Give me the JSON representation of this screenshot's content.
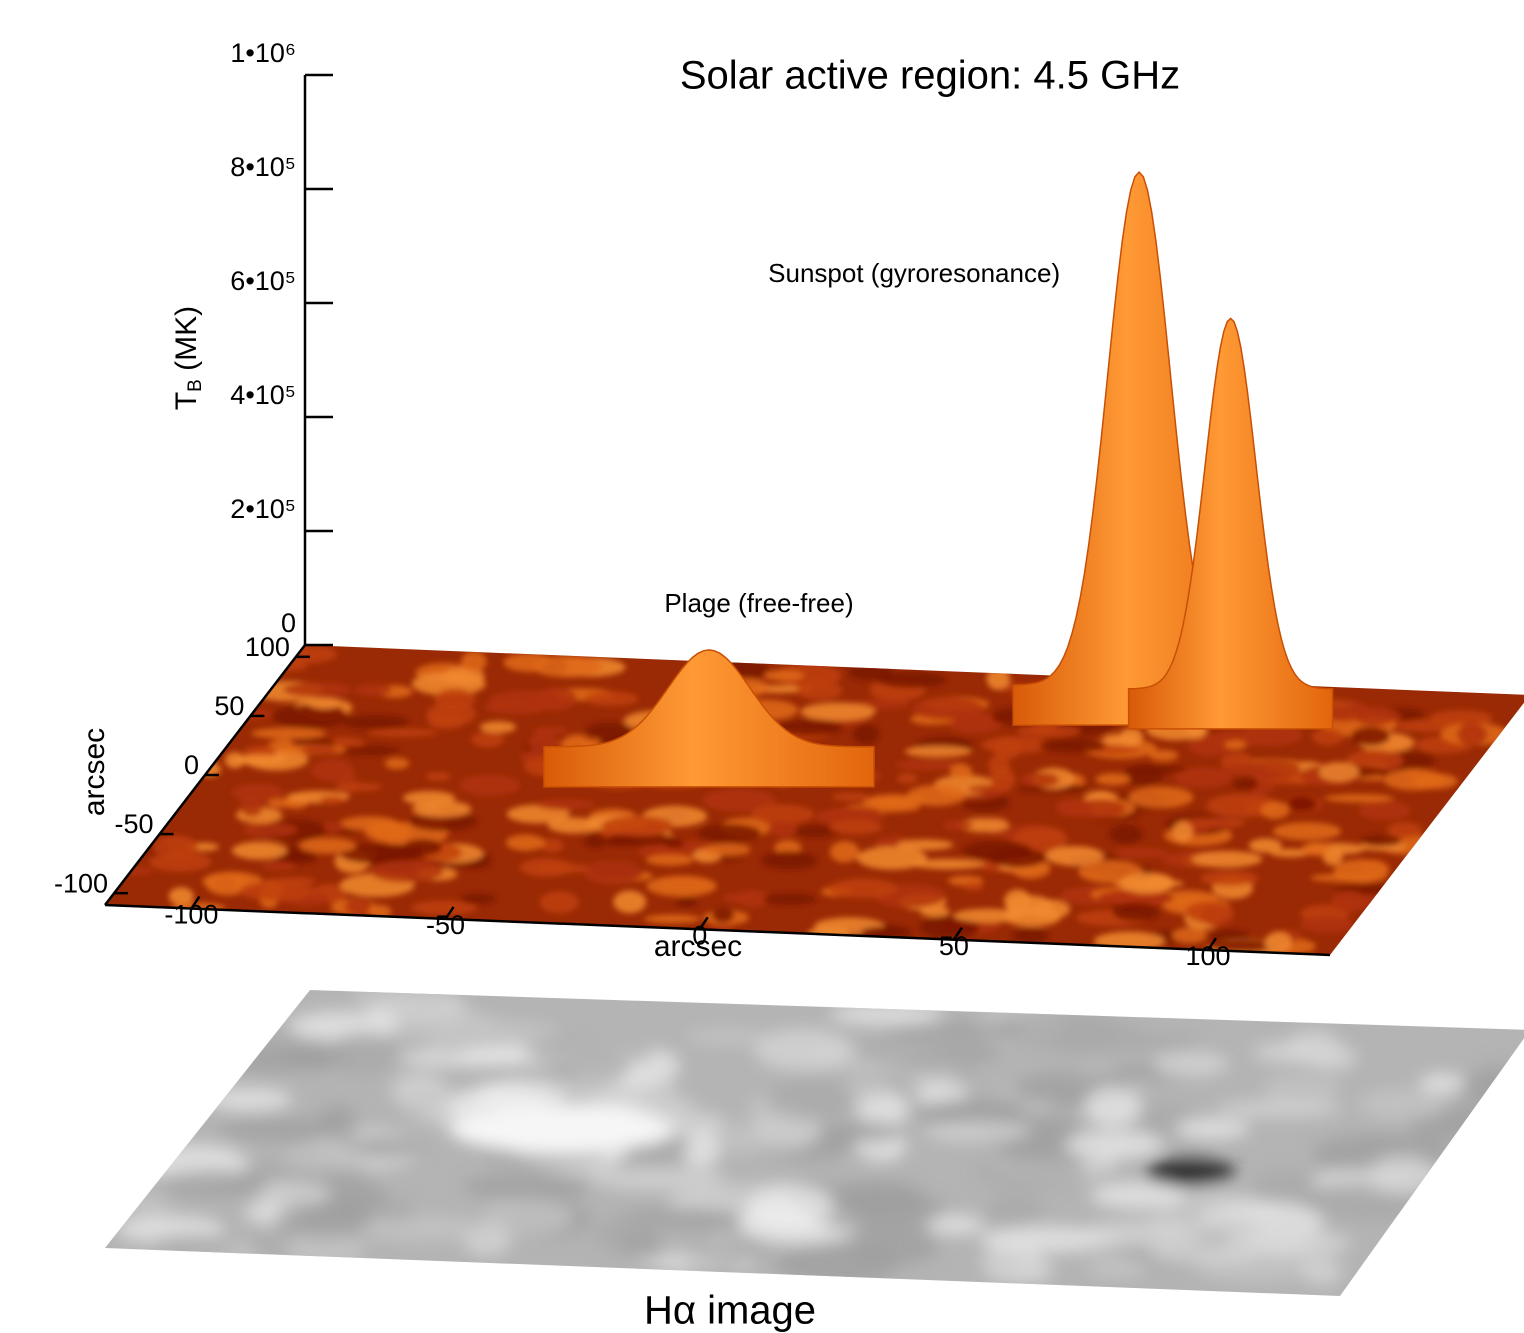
{
  "chart_data": {
    "type": "surface",
    "title": "Solar active region: 4.5 GHz",
    "zlabel": {
      "main": "T",
      "subscript": "B",
      "unit": " (MK)"
    },
    "xlabel": "arcsec",
    "ylabel": "arcsec",
    "zlim": [
      0,
      1000000
    ],
    "zticks": [
      0,
      {
        "value": 200000,
        "label": "2•10⁵"
      },
      {
        "value": 400000,
        "label": "4•10⁵"
      },
      {
        "value": 600000,
        "label": "6•10⁵"
      },
      {
        "value": 800000,
        "label": "8•10⁵"
      },
      {
        "value": 1000000,
        "label": "1•10⁶"
      }
    ],
    "xlim": [
      -117,
      124
    ],
    "xticks": [
      -100,
      -50,
      0,
      50,
      100
    ],
    "ylim": [
      -110,
      110
    ],
    "yticks": [
      -100,
      -50,
      0,
      50,
      100
    ],
    "peaks": [
      {
        "name": "Plage (free-free)",
        "x": -25,
        "y": 40,
        "z": 170000
      },
      {
        "name": "Sunspot (gyroresonance)",
        "x": 48,
        "y": 105,
        "z": 900000
      },
      {
        "x": 66,
        "y": 105,
        "z": 650000
      }
    ],
    "lower_panel_label": "Hα image"
  }
}
